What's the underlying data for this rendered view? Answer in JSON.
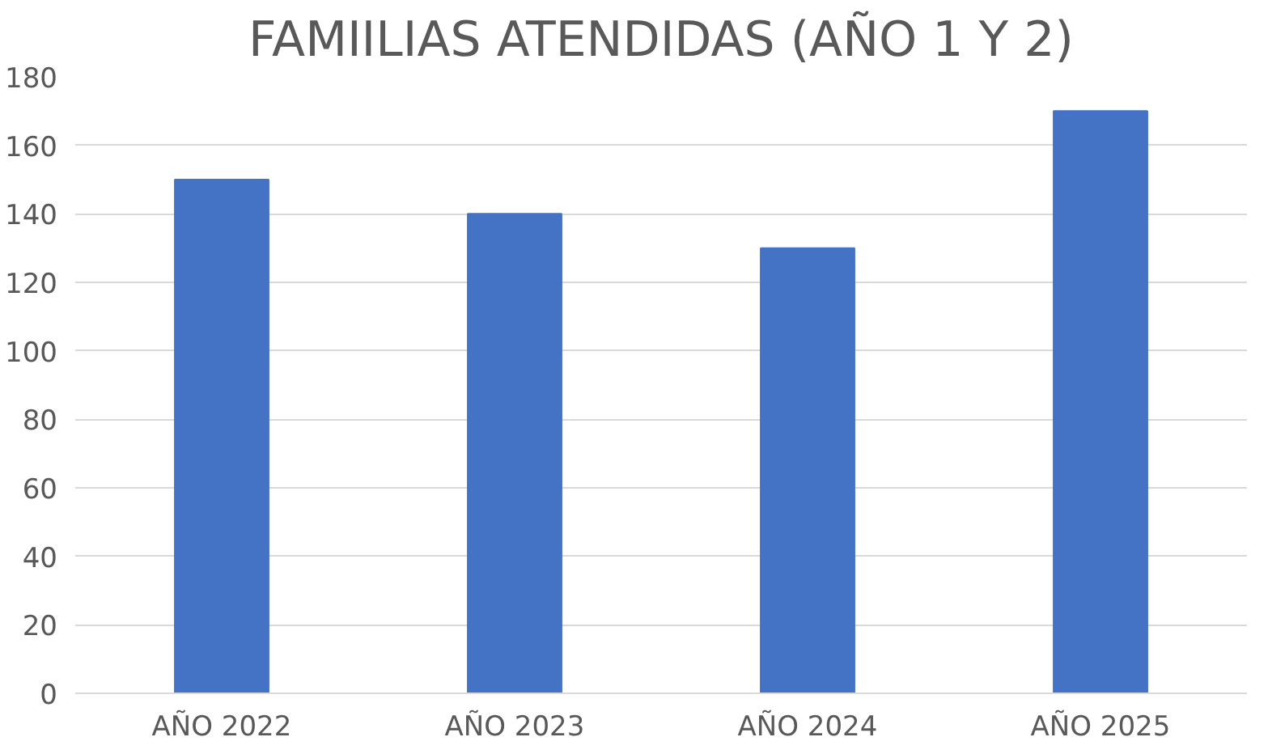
{
  "chart_data": {
    "type": "bar",
    "title": "FAMIILIAS ATENDIDAS (AÑO 1 Y 2)",
    "categories": [
      "AÑO 2022",
      "AÑO 2023",
      "AÑO 2024",
      "AÑO 2025"
    ],
    "values": [
      150,
      140,
      130,
      170
    ],
    "color": "#4472c4",
    "ylim": [
      0,
      180
    ],
    "yticks": [
      0,
      20,
      40,
      60,
      80,
      100,
      120,
      140,
      160,
      180
    ],
    "grid": "y"
  }
}
